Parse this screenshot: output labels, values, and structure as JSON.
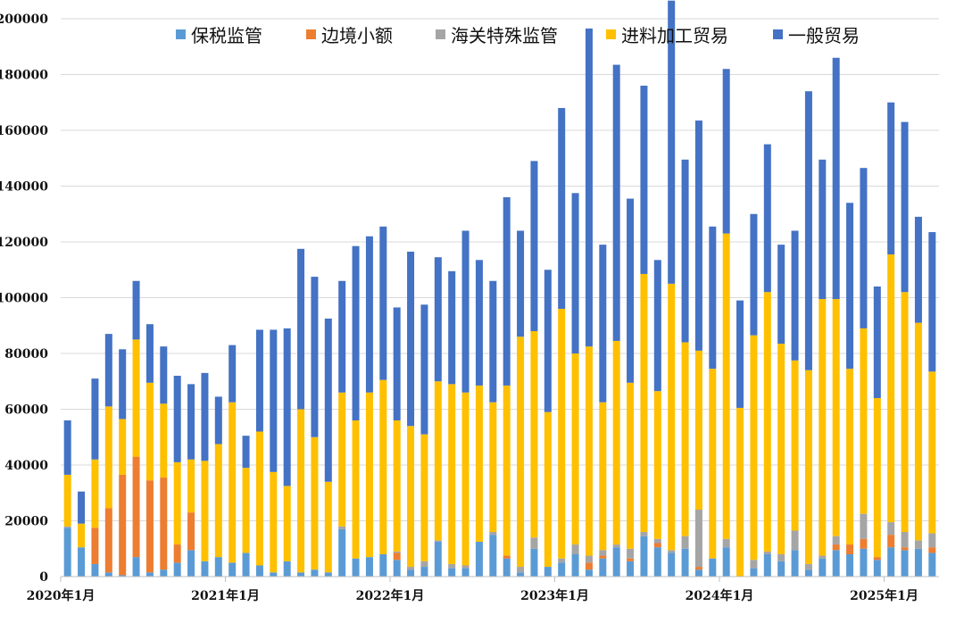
{
  "chart_data": {
    "type": "bar",
    "stacked": true,
    "grid": true,
    "legend_position": "top",
    "ylim": [
      0,
      200000
    ],
    "yticks": [
      0,
      20000,
      40000,
      60000,
      80000,
      100000,
      120000,
      140000,
      160000,
      180000,
      200000
    ],
    "x_tick_labels": [
      {
        "index": 0,
        "label": "2020年1月"
      },
      {
        "index": 12,
        "label": "2021年1月"
      },
      {
        "index": 24,
        "label": "2022年1月"
      },
      {
        "index": 36,
        "label": "2023年1月"
      },
      {
        "index": 48,
        "label": "2024年1月"
      },
      {
        "index": 60,
        "label": "2025年1月"
      }
    ],
    "series": [
      {
        "name": "保税监管",
        "color": "#5B9BD5",
        "values": [
          17500,
          10500,
          4500,
          1500,
          500,
          7000,
          1500,
          2500,
          5000,
          9500,
          5500,
          7000,
          5000,
          8500,
          4000,
          1500,
          5500,
          1500,
          2500,
          1500,
          17000,
          6500,
          7000,
          8000,
          6000,
          2500,
          3500,
          12500,
          3000,
          3000,
          12500,
          15000,
          6500,
          1500,
          10000,
          3500,
          5000,
          8000,
          2500,
          6500,
          10500,
          5500,
          14500,
          10500,
          8500,
          10000,
          2500,
          6500,
          10500,
          0,
          3000,
          8000,
          5500,
          9500,
          2500,
          6500,
          9500,
          8000,
          10000,
          6000,
          10500,
          9500,
          10000,
          8500
        ]
      },
      {
        "name": "边境小额",
        "color": "#ED7D31",
        "values": [
          0,
          0,
          13000,
          23000,
          36000,
          36000,
          33000,
          33000,
          6500,
          13500,
          0,
          0,
          0,
          0,
          0,
          0,
          0,
          0,
          0,
          0,
          0,
          0,
          0,
          0,
          2500,
          0,
          0,
          0,
          0,
          0,
          0,
          0,
          1000,
          0,
          0,
          0,
          0,
          0,
          2500,
          1000,
          0,
          1000,
          0,
          1500,
          0,
          0,
          1000,
          0,
          0,
          0,
          0,
          0,
          0,
          0,
          0,
          0,
          2000,
          3500,
          3500,
          1000,
          4500,
          1000,
          0,
          2000
        ]
      },
      {
        "name": "海关特殊监管",
        "color": "#A5A5A5",
        "values": [
          500,
          0,
          0,
          0,
          0,
          0,
          0,
          0,
          0,
          0,
          0,
          0,
          0,
          0,
          0,
          0,
          0,
          0,
          0,
          0,
          1000,
          0,
          0,
          0,
          500,
          1000,
          2000,
          500,
          1500,
          1000,
          0,
          1000,
          0,
          2000,
          4000,
          0,
          1500,
          3500,
          2500,
          2000,
          1000,
          3500,
          1500,
          1500,
          1000,
          4500,
          20500,
          0,
          3000,
          0,
          3000,
          1000,
          2500,
          7000,
          2000,
          1000,
          3000,
          0,
          9000,
          0,
          4500,
          5500,
          3000,
          5000
        ]
      },
      {
        "name": "进料加工贸易",
        "color": "#FFC000",
        "values": [
          18500,
          8500,
          24500,
          36500,
          20000,
          42000,
          35000,
          26500,
          29500,
          19000,
          36000,
          40500,
          57500,
          30500,
          48000,
          36000,
          27000,
          58500,
          47500,
          32500,
          48000,
          49500,
          59000,
          62500,
          47000,
          50500,
          45500,
          57000,
          64500,
          62000,
          56000,
          46500,
          61000,
          82500,
          74000,
          55500,
          89500,
          68500,
          75000,
          53000,
          73000,
          59500,
          92500,
          53000,
          95500,
          69500,
          57000,
          68000,
          109500,
          60500,
          80500,
          93000,
          75500,
          61000,
          69500,
          92000,
          85000,
          63000,
          66500,
          57000,
          96000,
          86000,
          78000,
          58000
        ]
      },
      {
        "name": "一般贸易",
        "color": "#4472C4",
        "values": [
          19500,
          11500,
          29000,
          26000,
          25000,
          21000,
          21000,
          20500,
          31000,
          27000,
          31500,
          17000,
          20500,
          11500,
          36500,
          51000,
          56500,
          57500,
          57500,
          58500,
          40000,
          62500,
          56000,
          55000,
          40500,
          62500,
          46500,
          44500,
          40500,
          58000,
          45000,
          43500,
          67500,
          38000,
          61000,
          51000,
          72000,
          57500,
          114000,
          56500,
          99000,
          66000,
          67500,
          47000,
          101500,
          65500,
          82500,
          51000,
          59000,
          38500,
          43500,
          53000,
          35500,
          46500,
          100000,
          50000,
          86500,
          59500,
          57500,
          40000,
          54500,
          61000,
          38000,
          50000
        ]
      }
    ]
  }
}
